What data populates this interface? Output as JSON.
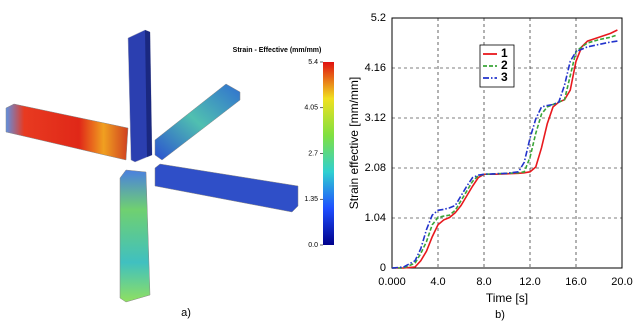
{
  "figure_a": {
    "colorbar_title": "Strain - Effective (mm/mm)",
    "colorbar_lim": [
      0,
      5.4
    ],
    "colorbar_ticks": [
      5.4,
      4.05,
      2.7,
      1.35,
      {
        "value": 0,
        "label": "0.0"
      }
    ],
    "label": "a)"
  },
  "chart_data": {
    "type": "line",
    "label": "b)",
    "xlabel": "Time [s]",
    "ylabel": "Strain effective [mm/mm]",
    "x": [
      0,
      1,
      2,
      2.5,
      3,
      3.5,
      4,
      4.5,
      5,
      5.5,
      6,
      6.5,
      7,
      7.5,
      8,
      9,
      10,
      11,
      11.5,
      12,
      12.5,
      13,
      13.5,
      14,
      14.5,
      15,
      15.5,
      16,
      16.5,
      17,
      18,
      19,
      19.6
    ],
    "series": [
      {
        "name": "1",
        "color": "#e8191e",
        "linestyle": "solid",
        "values": [
          0,
          0,
          0.02,
          0.15,
          0.35,
          0.65,
          0.9,
          1.0,
          1.05,
          1.15,
          1.3,
          1.5,
          1.7,
          1.88,
          1.95,
          1.95,
          1.96,
          1.97,
          1.98,
          2.0,
          2.1,
          2.5,
          3.0,
          3.35,
          3.45,
          3.5,
          3.7,
          4.3,
          4.6,
          4.72,
          4.8,
          4.88,
          4.95
        ]
      },
      {
        "name": "2",
        "color": "#3aa538",
        "linestyle": "dashed",
        "values": [
          0,
          0,
          0.1,
          0.3,
          0.55,
          0.9,
          1.05,
          1.08,
          1.1,
          1.2,
          1.4,
          1.6,
          1.8,
          1.92,
          1.95,
          1.96,
          1.97,
          1.98,
          2.0,
          2.3,
          2.8,
          3.2,
          3.35,
          3.4,
          3.45,
          3.5,
          4.0,
          4.5,
          4.6,
          4.68,
          4.75,
          4.8,
          4.85
        ]
      },
      {
        "name": "3",
        "color": "#2233cc",
        "linestyle": "dashdot",
        "values": [
          0,
          0.02,
          0.15,
          0.4,
          0.8,
          1.1,
          1.2,
          1.22,
          1.25,
          1.3,
          1.5,
          1.7,
          1.88,
          1.93,
          1.95,
          1.96,
          1.97,
          2.0,
          2.2,
          2.7,
          3.1,
          3.35,
          3.38,
          3.4,
          3.45,
          3.8,
          4.3,
          4.5,
          4.55,
          4.6,
          4.65,
          4.7,
          4.72
        ]
      }
    ],
    "xlim": [
      0,
      20
    ],
    "xticks": [
      {
        "value": 0,
        "label": "0.000"
      },
      {
        "value": 4,
        "label": "4.0"
      },
      {
        "value": 8,
        "label": "8.0"
      },
      {
        "value": 12,
        "label": "12.0"
      },
      {
        "value": 16,
        "label": "16.0"
      },
      {
        "value": 20,
        "label": "20.0"
      }
    ],
    "ylim": [
      0,
      5.2
    ],
    "yticks": [
      0,
      1.04,
      2.08,
      3.12,
      4.16,
      5.2
    ],
    "grid": true,
    "legend": "upper center"
  }
}
